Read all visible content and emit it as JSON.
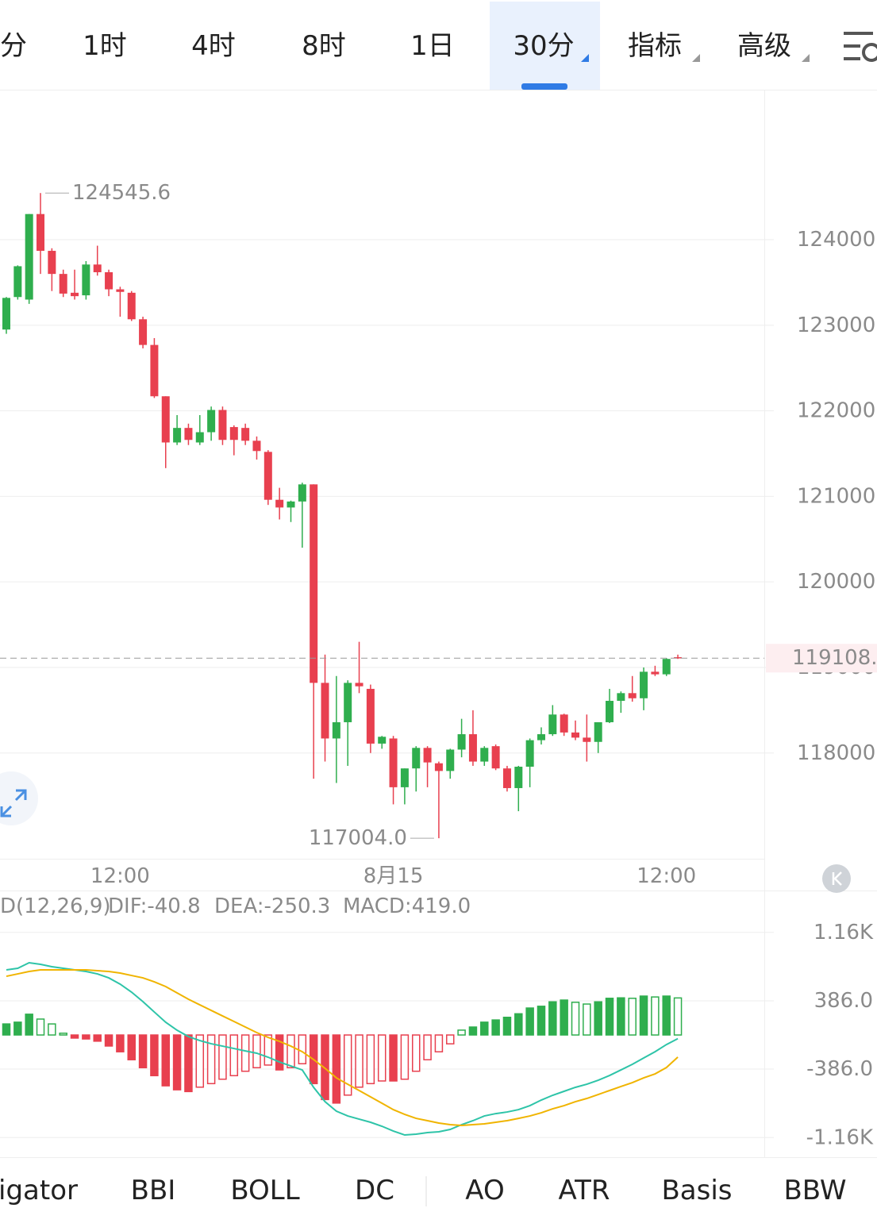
{
  "tabs": [
    "分",
    "1时",
    "4时",
    "8时",
    "1日",
    "30分",
    "指标",
    "高级"
  ],
  "active_tab": 5,
  "chart_data": [
    {
      "type": "candlestick",
      "categories": [
        null,
        null,
        null,
        null,
        null,
        null,
        null,
        null,
        null,
        null,
        "12:00",
        null,
        null,
        null,
        null,
        null,
        null,
        null,
        null,
        null,
        null,
        null,
        null,
        null,
        null,
        null,
        null,
        null,
        null,
        null,
        null,
        null,
        null,
        null,
        "8月15",
        null,
        null,
        null,
        null,
        null,
        null,
        null,
        null,
        null,
        null,
        null,
        null,
        null,
        null,
        null,
        null,
        null,
        null,
        null,
        null,
        null,
        null,
        null,
        "12:00",
        null
      ],
      "open": [
        122950,
        123330,
        123300,
        124300,
        123870,
        123600,
        123380,
        123350,
        123710,
        123620,
        123420,
        123380,
        123070,
        122770,
        122170,
        121630,
        121800,
        121630,
        121750,
        122010,
        121810,
        121800,
        121650,
        121520,
        120960,
        120870,
        120940,
        121140,
        118820,
        118170,
        118360,
        118820,
        118750,
        118110,
        118170,
        117600,
        117820,
        118060,
        117880,
        117790,
        118040,
        118220,
        117900,
        118080,
        117820,
        117590,
        117840,
        118150,
        118220,
        118450,
        118240,
        118180,
        118130,
        118360,
        118610,
        118700,
        118640,
        118950,
        118920,
        119120
      ],
      "high": [
        123330,
        123700,
        124300,
        124545.6,
        123900,
        123650,
        123650,
        123750,
        123930,
        123650,
        123450,
        123400,
        123100,
        122850,
        122170,
        121950,
        121850,
        121950,
        122050,
        122050,
        121830,
        121850,
        121700,
        121540,
        121100,
        120950,
        121160,
        121140,
        119150,
        118900,
        118850,
        119300,
        118800,
        118200,
        118200,
        117820,
        118080,
        118080,
        117900,
        118050,
        118400,
        118500,
        118080,
        118100,
        117850,
        117850,
        118170,
        118300,
        118560,
        118460,
        118380,
        118450,
        118360,
        118750,
        118720,
        118900,
        119000,
        119020,
        119110,
        119150
      ],
      "low": [
        122900,
        123300,
        123250,
        123600,
        123400,
        123330,
        123300,
        123300,
        123580,
        123340,
        123100,
        123050,
        122730,
        122150,
        121330,
        121600,
        121600,
        121600,
        121650,
        121600,
        121480,
        121600,
        121430,
        120900,
        120730,
        120700,
        120400,
        117700,
        117900,
        117650,
        117850,
        118700,
        118000,
        118050,
        117400,
        117400,
        117550,
        117600,
        117004,
        117700,
        117950,
        117850,
        117850,
        117800,
        117550,
        117320,
        117600,
        118100,
        118200,
        118200,
        118150,
        117900,
        118000,
        118350,
        118470,
        118600,
        118500,
        118900,
        118900,
        119100
      ],
      "close": [
        123320,
        123690,
        124300,
        123870,
        123600,
        123370,
        123340,
        123710,
        123620,
        123420,
        123390,
        123070,
        122770,
        122170,
        121630,
        121800,
        121660,
        121750,
        122010,
        121660,
        121660,
        121650,
        121530,
        120960,
        120870,
        120940,
        121140,
        118820,
        118170,
        118360,
        118820,
        118780,
        118110,
        118190,
        117600,
        117820,
        118060,
        117890,
        117790,
        118040,
        118220,
        117900,
        118060,
        117820,
        117590,
        117840,
        118150,
        118220,
        118450,
        118240,
        118180,
        118130,
        118360,
        118610,
        118700,
        118640,
        118950,
        118920,
        119100,
        119108.8
      ],
      "up_color": "#2fae4e",
      "down_color": "#e8404f",
      "ylim": [
        116764,
        125735
      ],
      "yticks": [
        118000,
        119000,
        120000,
        121000,
        122000,
        123000,
        124000
      ],
      "grid": true,
      "annotations": [
        {
          "value": 124545.6,
          "label": "124545.6"
        },
        {
          "value": 117004,
          "label": "117004.0"
        }
      ],
      "last_price_line": true
    },
    {
      "type": "macd",
      "title": "D(12,26,9)",
      "ylim": [
        -1382,
        1607
      ],
      "yticks": [
        {
          "value": 1160,
          "label": "1.16K"
        },
        {
          "value": 386,
          "label": "386.0"
        },
        {
          "value": -386,
          "label": "-386.0"
        },
        {
          "value": -1160,
          "label": "-1.16K"
        }
      ],
      "grid": true,
      "series": [
        {
          "name": "DIF:-40.8",
          "kind": "line",
          "color": "#2ec4a8",
          "values": [
            736,
            754,
            817,
            799,
            772,
            754,
            736,
            718,
            691,
            646,
            575,
            485,
            377,
            260,
            144,
            54,
            -18,
            -63,
            -99,
            -126,
            -153,
            -180,
            -206,
            -251,
            -305,
            -350,
            -395,
            -592,
            -754,
            -862,
            -916,
            -952,
            -987,
            -1032,
            -1086,
            -1131,
            -1122,
            -1104,
            -1095,
            -1068,
            -1014,
            -969,
            -916,
            -889,
            -871,
            -844,
            -799,
            -736,
            -682,
            -637,
            -592,
            -557,
            -512,
            -458,
            -395,
            -332,
            -260,
            -189,
            -108,
            -40.8
          ]
        },
        {
          "name": "DEA:-250.3",
          "kind": "line",
          "color": "#f0b400",
          "values": [
            664,
            691,
            718,
            736,
            736,
            736,
            736,
            736,
            727,
            718,
            700,
            673,
            646,
            601,
            548,
            476,
            404,
            341,
            278,
            215,
            153,
            90,
            27,
            -27,
            -72,
            -126,
            -189,
            -278,
            -377,
            -485,
            -557,
            -628,
            -700,
            -772,
            -844,
            -898,
            -943,
            -969,
            -996,
            -1014,
            -1023,
            -1014,
            -1005,
            -987,
            -969,
            -943,
            -916,
            -880,
            -835,
            -799,
            -754,
            -718,
            -673,
            -628,
            -583,
            -539,
            -485,
            -440,
            -368,
            -250.3
          ]
        },
        {
          "name": "MACD:419.0",
          "kind": "bar",
          "color": "#e040b0",
          "up_color": "#2fae4e",
          "down_color": "#e8404f",
          "values": [
            125,
            145,
            235,
            180,
            125,
            20,
            -35,
            -45,
            -70,
            -125,
            -190,
            -280,
            -370,
            -460,
            -575,
            -620,
            -640,
            -590,
            -550,
            -500,
            -460,
            -410,
            -370,
            -340,
            -395,
            -370,
            -325,
            -550,
            -730,
            -770,
            -680,
            -590,
            -550,
            -520,
            -520,
            -500,
            -410,
            -280,
            -190,
            -100,
            55,
            90,
            145,
            170,
            200,
            240,
            305,
            325,
            375,
            395,
            370,
            350,
            375,
            415,
            420,
            415,
            440,
            430,
            440,
            419
          ]
        }
      ]
    }
  ],
  "indicator_tabs": [
    "igator",
    "BBI",
    "BOLL",
    "DC",
    "AO",
    "ATR",
    "Basis",
    "BBW"
  ]
}
